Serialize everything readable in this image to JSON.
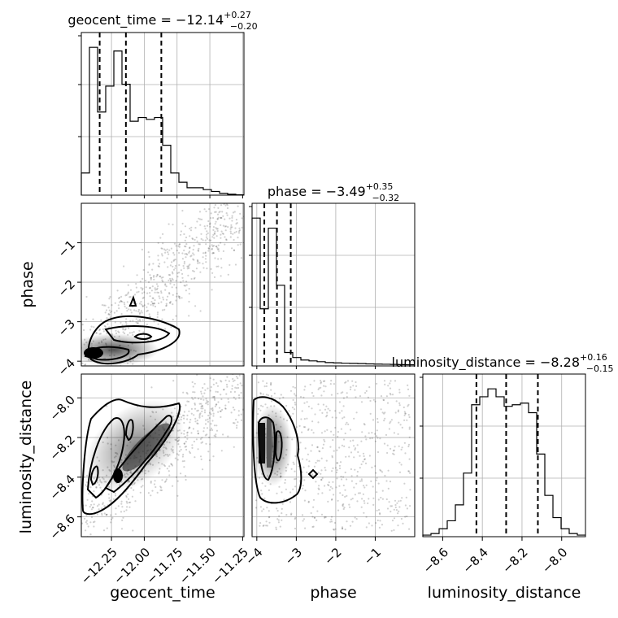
{
  "chart_data": {
    "type": "corner",
    "parameters": [
      "geocent_time",
      "phase",
      "luminosity_distance"
    ],
    "titles": [
      {
        "name": "geocent_time",
        "median": "−12.14",
        "plus": "+0.27",
        "minus": "−0.20"
      },
      {
        "name": "phase",
        "median": "−3.49",
        "plus": "+0.35",
        "minus": "−0.32"
      },
      {
        "name": "luminosity_distance",
        "median": "−8.28",
        "plus": "+0.16",
        "minus": "−0.15"
      }
    ],
    "axes": {
      "geocent_time": {
        "range": [
          -12.48,
          -11.24
        ],
        "ticks": [
          -12.25,
          -12.0,
          -11.75,
          -11.5,
          -11.25
        ],
        "tick_labels": [
          "−12.25",
          "−12.00",
          "−11.75",
          "−11.50",
          "−11.25"
        ]
      },
      "phase": {
        "range": [
          -4.12,
          -0.0
        ],
        "ticks": [
          -4,
          -3,
          -2,
          -1
        ],
        "tick_labels": [
          "−4",
          "−3",
          "−2",
          "−1"
        ]
      },
      "luminosity_distance": {
        "range": [
          -8.7,
          -7.88
        ],
        "ticks": [
          -8.6,
          -8.4,
          -8.2,
          -8.0
        ],
        "tick_labels": [
          "−8.6",
          "−8.4",
          "−8.2",
          "−8.0"
        ]
      }
    },
    "histograms": {
      "geocent_time": {
        "bin_range": [
          -12.48,
          -11.24
        ],
        "counts": [
          0.12,
          0.8,
          0.45,
          0.59,
          0.78,
          0.6,
          0.4,
          0.42,
          0.41,
          0.42,
          0.27,
          0.12,
          0.07,
          0.04,
          0.04,
          0.03,
          0.02,
          0.01,
          0.005,
          0.002
        ],
        "quantiles": [
          -12.34,
          -12.14,
          -11.87
        ]
      },
      "phase": {
        "bin_range": [
          -4.12,
          -0.0
        ],
        "counts": [
          0.88,
          0.34,
          0.82,
          0.48,
          0.08,
          0.05,
          0.035,
          0.03,
          0.025,
          0.02,
          0.018,
          0.016,
          0.015,
          0.014,
          0.012,
          0.011,
          0.01,
          0.009,
          0.008,
          0.007
        ],
        "quantiles": [
          -3.81,
          -3.49,
          -3.14
        ]
      },
      "luminosity_distance": {
        "bin_range": [
          -8.7,
          -7.88
        ],
        "counts": [
          0.01,
          0.02,
          0.05,
          0.1,
          0.2,
          0.4,
          0.83,
          0.88,
          0.93,
          0.88,
          0.82,
          0.83,
          0.84,
          0.78,
          0.52,
          0.26,
          0.12,
          0.05,
          0.02,
          0.01
        ],
        "quantiles": [
          -8.43,
          -8.28,
          -8.12
        ]
      }
    },
    "quantile_levels": [
      0.16,
      0.5,
      0.84
    ],
    "grid": true
  }
}
